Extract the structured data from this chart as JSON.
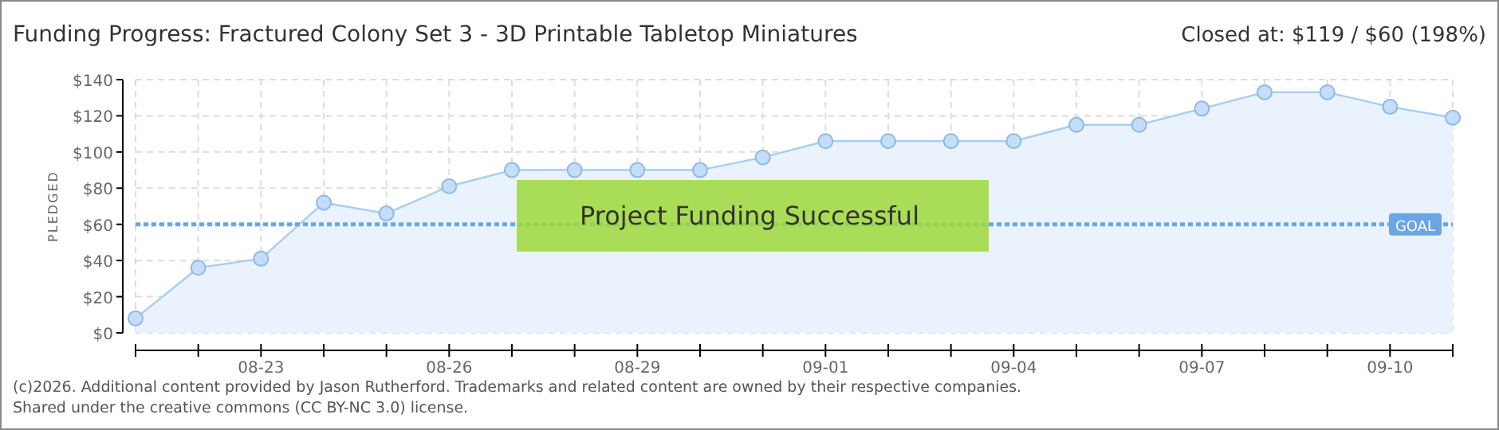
{
  "chart_data": {
    "type": "area",
    "title": "Funding Progress: Fractured Colony Set 3 - 3D Printable Tabletop Miniatures",
    "subtitle": "Closed at: $119 / $60 (198%)",
    "ylabel": "PLEDGED",
    "categories": [
      null,
      null,
      "08-23",
      null,
      null,
      "08-26",
      null,
      null,
      "08-29",
      null,
      null,
      "09-01",
      null,
      null,
      "09-04",
      null,
      null,
      "09-07",
      null,
      null,
      "09-10",
      null
    ],
    "series": [
      {
        "color": "#a9cdf2",
        "values": [
          8,
          36,
          41,
          72,
          66,
          81,
          90,
          90,
          90,
          90,
          97,
          106,
          106,
          106,
          106,
          115,
          115,
          124,
          133,
          133,
          125,
          119
        ]
      }
    ],
    "ylim": [
      0,
      140
    ],
    "yticks": [
      {
        "value": 0,
        "label": "$0"
      },
      {
        "value": 20,
        "label": "$20"
      },
      {
        "value": 40,
        "label": "$40"
      },
      {
        "value": 60,
        "label": "$60"
      },
      {
        "value": 80,
        "label": "$80"
      },
      {
        "value": 100,
        "label": "$100"
      },
      {
        "value": 120,
        "label": "$120"
      },
      {
        "value": 140,
        "label": "$140"
      }
    ],
    "grid": true,
    "marker": "circle",
    "ref_lines": [
      {
        "axis": "y",
        "value": 60,
        "label": "GOAL",
        "color": "#6aa6e6",
        "line_style": "dotted"
      }
    ],
    "annotations": [
      "Project Funding Successful",
      "(c)2026. Additional content provided by Jason Rutherford. Trademarks and related content are owned by their respective companies.",
      "Shared under the creative commons (CC BY-NC 3.0) license."
    ]
  }
}
